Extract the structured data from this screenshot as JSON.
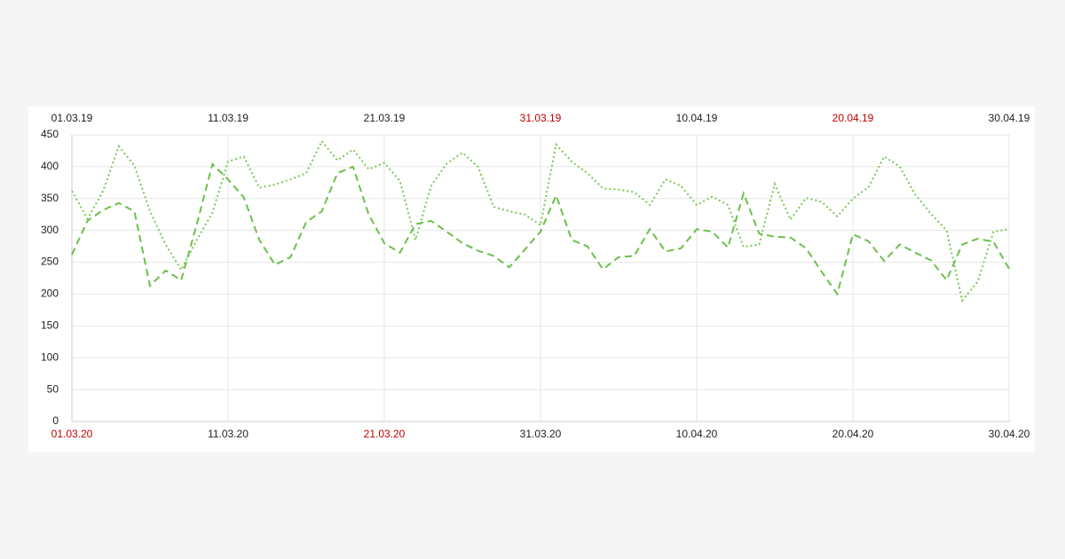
{
  "chart_data": {
    "type": "line",
    "categories": [
      "01.03.20",
      null,
      null,
      null,
      null,
      null,
      null,
      null,
      null,
      null,
      "11.03.20",
      null,
      null,
      null,
      null,
      null,
      null,
      null,
      null,
      null,
      "21.03.20",
      null,
      null,
      null,
      null,
      null,
      null,
      null,
      null,
      null,
      "31.03.20",
      null,
      null,
      null,
      null,
      null,
      null,
      null,
      null,
      null,
      "10.04.20",
      null,
      null,
      null,
      null,
      null,
      null,
      null,
      null,
      null,
      "20.04.20",
      null,
      null,
      null,
      null,
      null,
      null,
      null,
      null,
      null,
      "30.04.20"
    ],
    "category_label_colors": [
      "#c00000",
      "#222222",
      "#c00000",
      "#222222",
      "#222222",
      "#222222",
      "#222222"
    ],
    "top_categories": [
      "01.03.19",
      null,
      null,
      null,
      null,
      null,
      null,
      null,
      null,
      null,
      "11.03.19",
      null,
      null,
      null,
      null,
      null,
      null,
      null,
      null,
      null,
      "21.03.19",
      null,
      null,
      null,
      null,
      null,
      null,
      null,
      null,
      null,
      "31.03.19",
      null,
      null,
      null,
      null,
      null,
      null,
      null,
      null,
      null,
      "10.04.19",
      null,
      null,
      null,
      null,
      null,
      null,
      null,
      null,
      null,
      "20.04.19",
      null,
      null,
      null,
      null,
      null,
      null,
      null,
      null,
      null,
      "30.04.19"
    ],
    "top_category_label_colors": [
      "#222222",
      "#222222",
      "#222222",
      "#c00000",
      "#222222",
      "#c00000",
      "#222222"
    ],
    "series": [
      {
        "color": "#7ac75a",
        "dash": "dotted",
        "axis": "top",
        "values": [
          362,
          318,
          362,
          432,
          402,
          330,
          278,
          238,
          285,
          328,
          408,
          416,
          367,
          372,
          380,
          390,
          440,
          410,
          427,
          396,
          406,
          378,
          285,
          370,
          405,
          422,
          400,
          337,
          330,
          325,
          308,
          435,
          408,
          390,
          366,
          364,
          360,
          340,
          380,
          370,
          340,
          353,
          340,
          274,
          278,
          373,
          317,
          351,
          345,
          322,
          350,
          368,
          416,
          400,
          356,
          326,
          300,
          190,
          220,
          298,
          302
        ]
      },
      {
        "color": "#6cc04a",
        "dash": "dashed",
        "axis": "bottom",
        "values": [
          262,
          315,
          332,
          343,
          330,
          213,
          237,
          222,
          310,
          404,
          380,
          352,
          285,
          246,
          258,
          313,
          330,
          390,
          400,
          325,
          280,
          265,
          310,
          315,
          298,
          280,
          268,
          260,
          242,
          270,
          298,
          355,
          285,
          275,
          239,
          258,
          260,
          302,
          267,
          272,
          302,
          298,
          273,
          358,
          295,
          290,
          289,
          272,
          235,
          200,
          294,
          283,
          252,
          278,
          265,
          253,
          222,
          278,
          287,
          282,
          240
        ]
      }
    ],
    "ylim": [
      0,
      450
    ],
    "yticks": [
      0,
      50,
      100,
      150,
      200,
      250,
      300,
      350,
      400,
      450
    ],
    "grid": true
  }
}
